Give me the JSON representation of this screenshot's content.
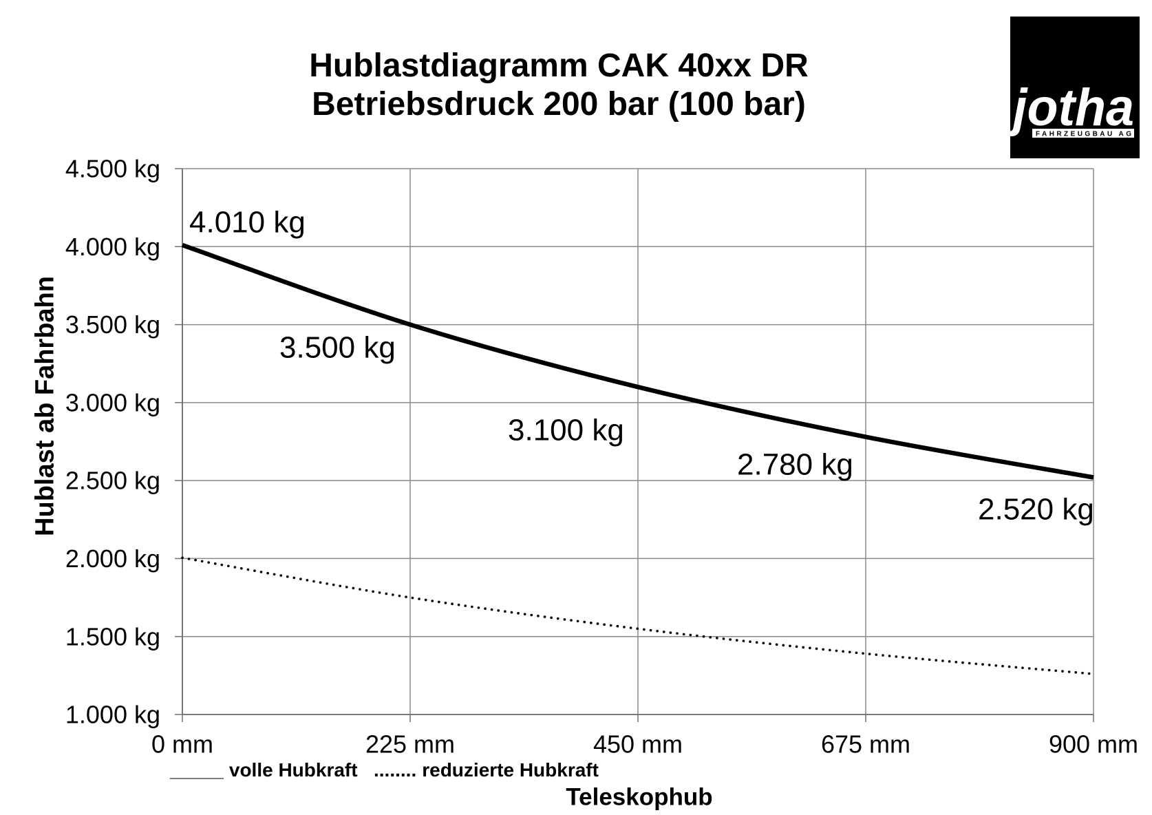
{
  "chart_data": {
    "type": "line",
    "title": "Hublastdiagramm CAK 40xx DR",
    "subtitle": "Betriebsdruck 200 bar (100 bar)",
    "xlabel": "Teleskophub",
    "ylabel": "Hublast ab Fahrbahn",
    "x": [
      0,
      225,
      450,
      675,
      900
    ],
    "xlim": [
      0,
      900
    ],
    "ylim": [
      1000,
      4500
    ],
    "x_ticks": {
      "values": [
        0,
        225,
        450,
        675,
        900
      ],
      "labels": [
        "0 mm",
        "225 mm",
        "450 mm",
        "675 mm",
        "900 mm"
      ]
    },
    "y_ticks": {
      "values": [
        1000,
        1500,
        2000,
        2500,
        3000,
        3500,
        4000,
        4500
      ],
      "labels": [
        "1.000 kg",
        "1.500 kg",
        "2.000 kg",
        "2.500 kg",
        "3.000 kg",
        "3.500 kg",
        "4.000 kg",
        "4.500 kg"
      ]
    },
    "grid": true,
    "legend_position": "bottom-left",
    "series": [
      {
        "name": "volle Hubkraft",
        "legend_marker": "_____",
        "line_style": "solid",
        "values": [
          4010,
          3500,
          3100,
          2780,
          2520
        ],
        "data_labels": [
          "4.010 kg",
          "3.500 kg",
          "3.100 kg",
          "2.780 kg",
          "2.520 kg"
        ]
      },
      {
        "name": "reduzierte Hubkraft",
        "legend_marker": "........",
        "line_style": "dotted",
        "values": [
          2005,
          1750,
          1550,
          1390,
          1260
        ]
      }
    ]
  },
  "logo": {
    "wordmark": "jotha",
    "tagline": "FAHRZEUGBAU AG"
  },
  "colors": {
    "background": "#ffffff",
    "series_line": "#000000",
    "grid": "#8a8a8a",
    "axis": "#6f6f6f",
    "logo_background": "#000000",
    "logo_text": "#ffffff"
  }
}
